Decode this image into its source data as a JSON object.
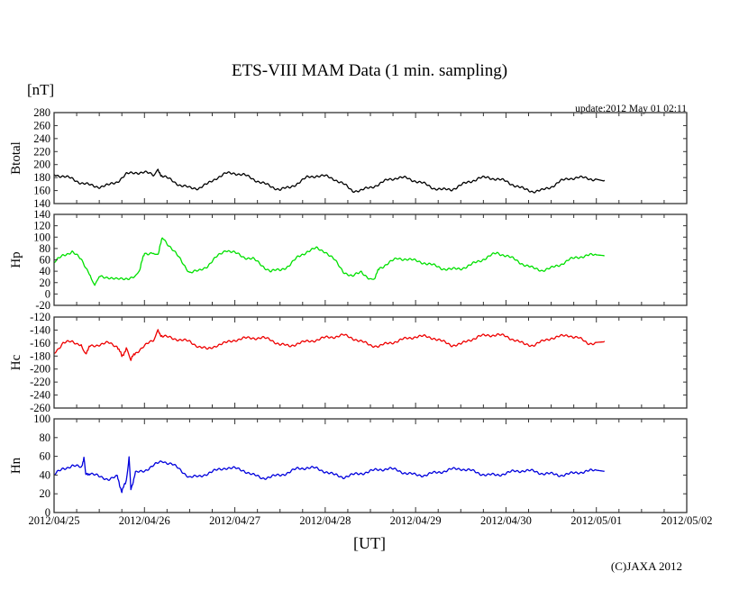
{
  "title": "ETS-VIII MAM Data (1 min. sampling)",
  "unit_label": "[nT]",
  "update_text": "update:2012 May 01 02:11",
  "x_axis_label": "[UT]",
  "copyright": "(C)JAXA 2012",
  "chart_data": {
    "type": "line",
    "title": "ETS-VIII MAM Data (1 min. sampling)",
    "xlabel": "[UT]",
    "x_unit": "days since 2012/04/25 00:00 UT",
    "xlim": [
      0,
      7
    ],
    "x_tick_labels": [
      "2012/04/25",
      "2012/04/26",
      "2012/04/27",
      "2012/04/28",
      "2012/04/29",
      "2012/04/30",
      "2012/05/01",
      "2012/05/02"
    ],
    "grid": false,
    "panels": [
      {
        "name": "Btotal",
        "ylabel": "Btotal",
        "ylim": [
          140,
          280
        ],
        "ystep": 20,
        "color": "#000000",
        "x": [
          0,
          0.1,
          0.2,
          0.3,
          0.4,
          0.5,
          0.6,
          0.7,
          0.8,
          0.9,
          1.0,
          1.1,
          1.15,
          1.2,
          1.3,
          1.4,
          1.5,
          1.6,
          1.7,
          1.8,
          1.9,
          2.0,
          2.1,
          2.2,
          2.3,
          2.4,
          2.5,
          2.6,
          2.7,
          2.8,
          2.9,
          3.0,
          3.1,
          3.2,
          3.3,
          3.4,
          3.5,
          3.6,
          3.7,
          3.8,
          3.9,
          4.0,
          4.1,
          4.2,
          4.3,
          4.4,
          4.5,
          4.6,
          4.7,
          4.8,
          4.9,
          5.0,
          5.1,
          5.2,
          5.3,
          5.4,
          5.5,
          5.6,
          5.7,
          5.8,
          5.9,
          6.0,
          6.09
        ],
        "y": [
          185,
          182,
          178,
          172,
          168,
          166,
          168,
          174,
          185,
          188,
          188,
          184,
          190,
          182,
          176,
          168,
          164,
          164,
          170,
          180,
          186,
          187,
          184,
          178,
          172,
          166,
          162,
          164,
          172,
          180,
          183,
          182,
          178,
          170,
          160,
          160,
          165,
          170,
          177,
          180,
          179,
          175,
          170,
          164,
          161,
          162,
          168,
          174,
          179,
          180,
          178,
          174,
          168,
          162,
          159,
          160,
          166,
          174,
          179,
          180,
          179,
          177,
          176
        ]
      },
      {
        "name": "Hp",
        "ylabel": "Hp",
        "ylim": [
          -20,
          140
        ],
        "ystep": 20,
        "color": "#00e000",
        "x": [
          0,
          0.1,
          0.2,
          0.3,
          0.4,
          0.45,
          0.5,
          0.6,
          0.7,
          0.8,
          0.9,
          0.95,
          1.0,
          1.1,
          1.15,
          1.2,
          1.3,
          1.4,
          1.5,
          1.6,
          1.7,
          1.8,
          1.9,
          2.0,
          2.1,
          2.2,
          2.3,
          2.4,
          2.5,
          2.6,
          2.7,
          2.8,
          2.9,
          3.0,
          3.1,
          3.2,
          3.3,
          3.4,
          3.5,
          3.55,
          3.6,
          3.7,
          3.8,
          3.9,
          4.0,
          4.1,
          4.2,
          4.3,
          4.4,
          4.5,
          4.6,
          4.7,
          4.8,
          4.9,
          5.0,
          5.1,
          5.2,
          5.3,
          5.4,
          5.5,
          5.6,
          5.7,
          5.8,
          5.9,
          6.0,
          6.09
        ],
        "y": [
          55,
          68,
          75,
          60,
          35,
          15,
          30,
          30,
          25,
          28,
          30,
          45,
          72,
          72,
          70,
          100,
          80,
          60,
          38,
          40,
          50,
          65,
          78,
          72,
          65,
          62,
          50,
          40,
          42,
          50,
          65,
          75,
          80,
          75,
          60,
          40,
          30,
          40,
          25,
          30,
          45,
          55,
          62,
          62,
          58,
          55,
          50,
          45,
          43,
          45,
          50,
          58,
          65,
          72,
          68,
          60,
          52,
          45,
          42,
          45,
          52,
          60,
          65,
          68,
          68,
          67
        ]
      },
      {
        "name": "Hc",
        "ylabel": "Hc",
        "ylim": [
          -260,
          -120
        ],
        "ystep": 20,
        "color": "#ee0000",
        "x": [
          0,
          0.1,
          0.2,
          0.3,
          0.35,
          0.4,
          0.5,
          0.6,
          0.7,
          0.75,
          0.8,
          0.85,
          0.9,
          1.0,
          1.1,
          1.15,
          1.2,
          1.3,
          1.4,
          1.5,
          1.6,
          1.7,
          1.8,
          1.9,
          2.0,
          2.1,
          2.2,
          2.3,
          2.4,
          2.5,
          2.6,
          2.7,
          2.8,
          2.9,
          3.0,
          3.1,
          3.2,
          3.3,
          3.4,
          3.5,
          3.6,
          3.7,
          3.8,
          3.9,
          4.0,
          4.1,
          4.2,
          4.3,
          4.4,
          4.5,
          4.6,
          4.7,
          4.8,
          4.9,
          5.0,
          5.1,
          5.2,
          5.3,
          5.4,
          5.5,
          5.6,
          5.7,
          5.8,
          5.9,
          6.0,
          6.09
        ],
        "y": [
          -175,
          -160,
          -158,
          -162,
          -175,
          -165,
          -162,
          -160,
          -165,
          -180,
          -170,
          -185,
          -175,
          -165,
          -155,
          -142,
          -150,
          -152,
          -155,
          -158,
          -165,
          -170,
          -163,
          -160,
          -155,
          -153,
          -152,
          -152,
          -155,
          -162,
          -165,
          -160,
          -158,
          -155,
          -152,
          -150,
          -148,
          -152,
          -158,
          -163,
          -165,
          -160,
          -157,
          -153,
          -150,
          -150,
          -152,
          -158,
          -163,
          -162,
          -155,
          -150,
          -148,
          -147,
          -150,
          -155,
          -162,
          -163,
          -158,
          -152,
          -150,
          -148,
          -152,
          -160,
          -160,
          -157
        ]
      },
      {
        "name": "Hn",
        "ylabel": "Hn",
        "ylim": [
          0,
          100
        ],
        "ystep": 20,
        "color": "#0000dd",
        "x": [
          0,
          0.1,
          0.2,
          0.3,
          0.33,
          0.35,
          0.4,
          0.5,
          0.6,
          0.7,
          0.75,
          0.8,
          0.83,
          0.85,
          0.9,
          1.0,
          1.1,
          1.2,
          1.3,
          1.4,
          1.5,
          1.6,
          1.7,
          1.8,
          1.9,
          2.0,
          2.1,
          2.2,
          2.3,
          2.4,
          2.5,
          2.6,
          2.7,
          2.8,
          2.9,
          3.0,
          3.1,
          3.2,
          3.3,
          3.4,
          3.5,
          3.6,
          3.7,
          3.8,
          3.9,
          4.0,
          4.1,
          4.2,
          4.3,
          4.4,
          4.5,
          4.6,
          4.7,
          4.8,
          4.9,
          5.0,
          5.1,
          5.2,
          5.3,
          5.4,
          5.5,
          5.6,
          5.7,
          5.8,
          5.9,
          6.0,
          6.09
        ],
        "y": [
          40,
          47,
          50,
          48,
          58,
          40,
          42,
          38,
          36,
          38,
          22,
          35,
          58,
          25,
          42,
          45,
          50,
          55,
          52,
          45,
          38,
          38,
          42,
          45,
          48,
          47,
          45,
          40,
          37,
          38,
          40,
          43,
          47,
          48,
          47,
          44,
          40,
          38,
          40,
          42,
          44,
          46,
          47,
          45,
          42,
          40,
          40,
          42,
          44,
          46,
          47,
          45,
          42,
          40,
          40,
          42,
          44,
          45,
          44,
          42,
          41,
          40,
          41,
          43,
          44,
          45,
          44
        ]
      }
    ]
  }
}
